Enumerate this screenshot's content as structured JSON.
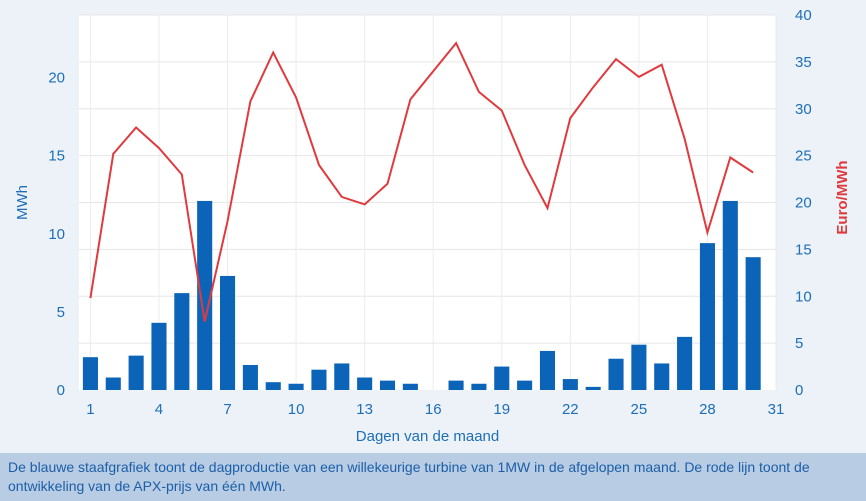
{
  "caption": "De blauwe staafgrafiek toont de dagproductie van een willekeurige turbine van 1MW in de afgelopen maand. De rode lijn toont de ontwikkeling van de APX-prijs van één MWh.",
  "colors": {
    "bars": "#0b64b7",
    "line": "#e03a3e",
    "left_axis_text": "#1c6fb8",
    "right_axis_text": "#e03a3e",
    "plot_background": "#ffffff",
    "page_background": "#edf2f8",
    "caption_background": "#b8cde3"
  },
  "chart_data": {
    "type": "bar",
    "xlabel": "Dagen van de maand",
    "x": [
      1,
      2,
      3,
      4,
      5,
      6,
      7,
      8,
      9,
      10,
      11,
      12,
      13,
      14,
      15,
      16,
      17,
      18,
      19,
      20,
      21,
      22,
      23,
      24,
      25,
      26,
      27,
      28,
      29,
      30
    ],
    "x_ticks": [
      1,
      4,
      7,
      10,
      13,
      16,
      19,
      22,
      25,
      28,
      31
    ],
    "xlim": [
      0.5,
      31
    ],
    "series": [
      {
        "name": "MWh",
        "type": "bar",
        "axis": "left",
        "values": [
          2.1,
          0.8,
          2.2,
          4.3,
          6.2,
          12.1,
          7.3,
          1.6,
          0.5,
          0.4,
          1.3,
          1.7,
          0.8,
          0.6,
          0.4,
          0.0,
          0.6,
          0.4,
          1.5,
          0.6,
          2.5,
          0.7,
          0.2,
          2.0,
          2.9,
          1.7,
          3.4,
          9.4,
          12.1,
          8.5
        ]
      },
      {
        "name": "Euro/MWh",
        "type": "line",
        "axis": "right",
        "values": [
          9.8,
          25.2,
          28.0,
          25.8,
          23.0,
          7.3,
          18.0,
          30.8,
          36.0,
          31.2,
          24.0,
          20.6,
          19.8,
          22.0,
          31.0,
          34.0,
          37.0,
          31.8,
          29.8,
          24.0,
          19.4,
          29.0,
          32.3,
          35.3,
          33.4,
          34.7,
          26.8,
          16.8,
          24.8,
          23.2
        ]
      }
    ],
    "left_axis": {
      "label": "MWh",
      "ylim": [
        0,
        24
      ],
      "ticks": [
        0,
        5,
        10,
        15,
        20
      ]
    },
    "right_axis": {
      "label": "Euro/MWh",
      "ylim": [
        0,
        40
      ],
      "ticks": [
        0,
        5,
        10,
        15,
        20,
        25,
        30,
        35,
        40
      ]
    },
    "grid": true
  }
}
